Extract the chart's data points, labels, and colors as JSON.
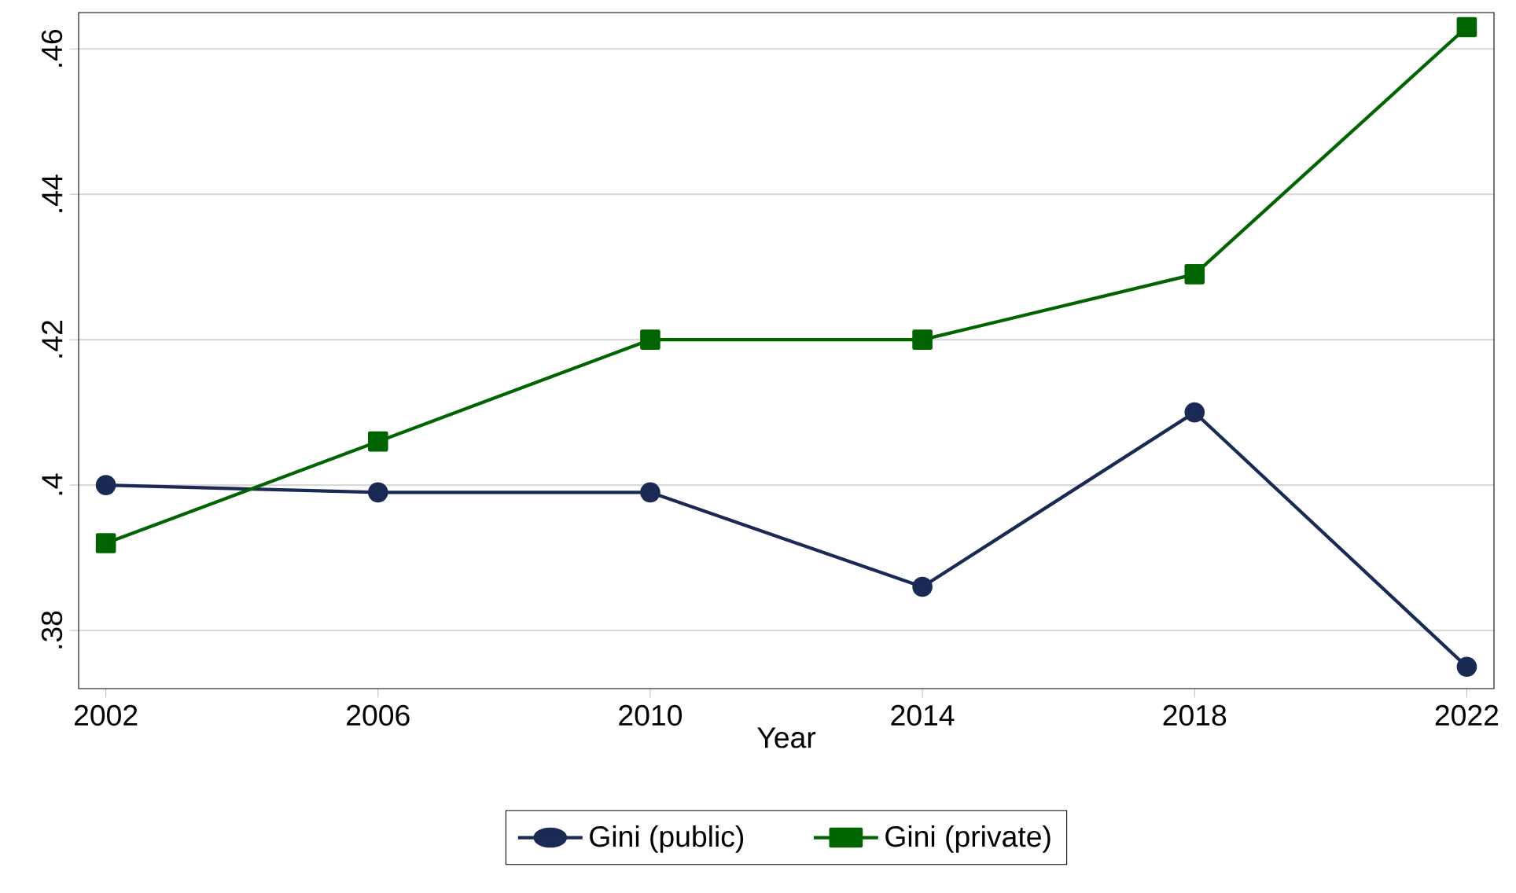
{
  "chart_data": {
    "type": "line",
    "xlabel": "Year",
    "x": [
      2002,
      2006,
      2010,
      2014,
      2018,
      2022
    ],
    "series": [
      {
        "name": "Gini (public)",
        "color": "#1a2a55",
        "marker": "circle",
        "values": [
          0.4,
          0.399,
          0.399,
          0.386,
          0.41,
          0.375
        ]
      },
      {
        "name": "Gini (private)",
        "color": "#006400",
        "marker": "square",
        "values": [
          0.392,
          0.406,
          0.42,
          0.42,
          0.429,
          0.463
        ]
      }
    ],
    "xlim": [
      2001.6,
      2022.4
    ],
    "ylim": [
      0.372,
      0.465
    ],
    "xticks": [
      2002,
      2006,
      2010,
      2014,
      2018,
      2022
    ],
    "yticks": [
      {
        "value": 0.38,
        "label": ".38"
      },
      {
        "value": 0.4,
        "label": ".4"
      },
      {
        "value": 0.42,
        "label": ".42"
      },
      {
        "value": 0.44,
        "label": ".44"
      },
      {
        "value": 0.46,
        "label": ".46"
      }
    ],
    "grid": "y",
    "legend": "bottom",
    "line_style": "solid"
  }
}
